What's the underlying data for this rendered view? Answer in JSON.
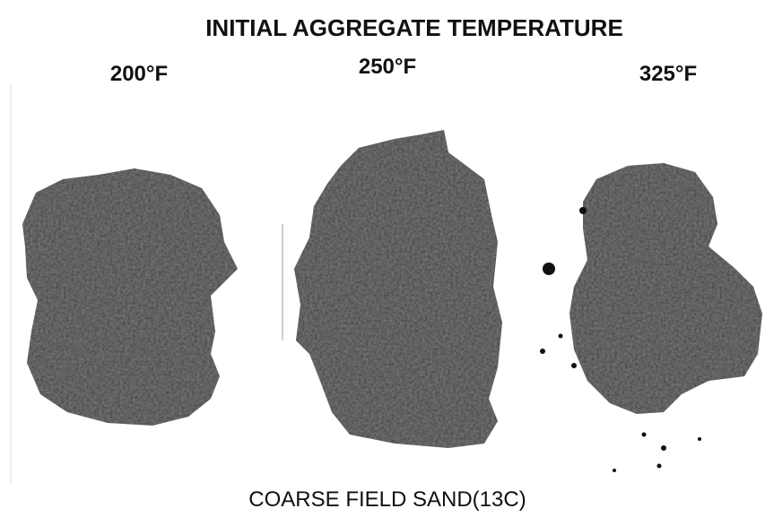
{
  "title": "INITIAL AGGREGATE TEMPERATURE",
  "samples": [
    {
      "label": "200°F"
    },
    {
      "label": "250°F"
    },
    {
      "label": "325°F"
    }
  ],
  "caption": "COARSE FIELD SAND(13C)"
}
